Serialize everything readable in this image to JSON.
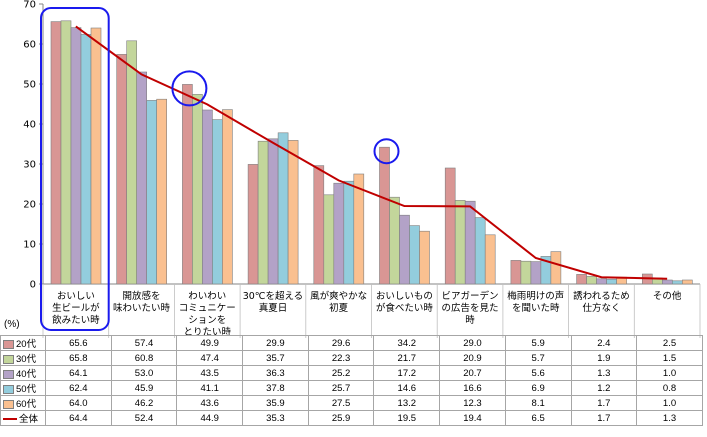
{
  "chart_data": {
    "type": "bar",
    "unit_label": "(%)",
    "ylim": [
      0,
      70
    ],
    "yticks": [
      0,
      10,
      20,
      30,
      40,
      50,
      60,
      70
    ],
    "grid": false,
    "categories": [
      [
        "おいしい",
        "生ビールが",
        "飲みたい時"
      ],
      [
        "開放感を",
        "味わいたい時"
      ],
      [
        "わいわい",
        "コミュニケー",
        "ションを",
        "とりたい時"
      ],
      [
        "30℃を超える",
        "真夏日"
      ],
      [
        "風が爽やかな",
        "初夏"
      ],
      [
        "おいしいもの",
        "が食べたい時"
      ],
      [
        "ビアガーデン",
        "の広告を見た",
        "時"
      ],
      [
        "梅雨明けの声",
        "を聞いた時"
      ],
      [
        "誘われるため",
        "仕方なく"
      ],
      [
        "その他"
      ]
    ],
    "series": [
      {
        "name": "20代",
        "color": "#d99694",
        "values": [
          65.6,
          57.4,
          49.9,
          29.9,
          29.6,
          34.2,
          29.0,
          5.9,
          2.4,
          2.5
        ]
      },
      {
        "name": "30代",
        "color": "#c3d69b",
        "values": [
          65.8,
          60.8,
          47.4,
          35.7,
          22.3,
          21.7,
          20.9,
          5.7,
          1.9,
          1.5
        ]
      },
      {
        "name": "40代",
        "color": "#b3a2c7",
        "values": [
          64.1,
          53.0,
          43.5,
          36.3,
          25.2,
          17.2,
          20.7,
          5.6,
          1.3,
          1.0
        ]
      },
      {
        "name": "50代",
        "color": "#93cddd",
        "values": [
          62.4,
          45.9,
          41.1,
          37.8,
          25.7,
          14.6,
          16.6,
          6.9,
          1.2,
          0.8
        ]
      },
      {
        "name": "60代",
        "color": "#fac090",
        "values": [
          64.0,
          46.2,
          43.6,
          35.9,
          27.5,
          13.2,
          12.3,
          8.1,
          1.7,
          1.0
        ]
      }
    ],
    "line_series": {
      "name": "全体",
      "color": "#c00000",
      "values": [
        64.4,
        52.4,
        44.9,
        35.3,
        25.9,
        19.5,
        19.4,
        6.5,
        1.7,
        1.3
      ]
    },
    "highlight_color": "#1a1aee"
  }
}
